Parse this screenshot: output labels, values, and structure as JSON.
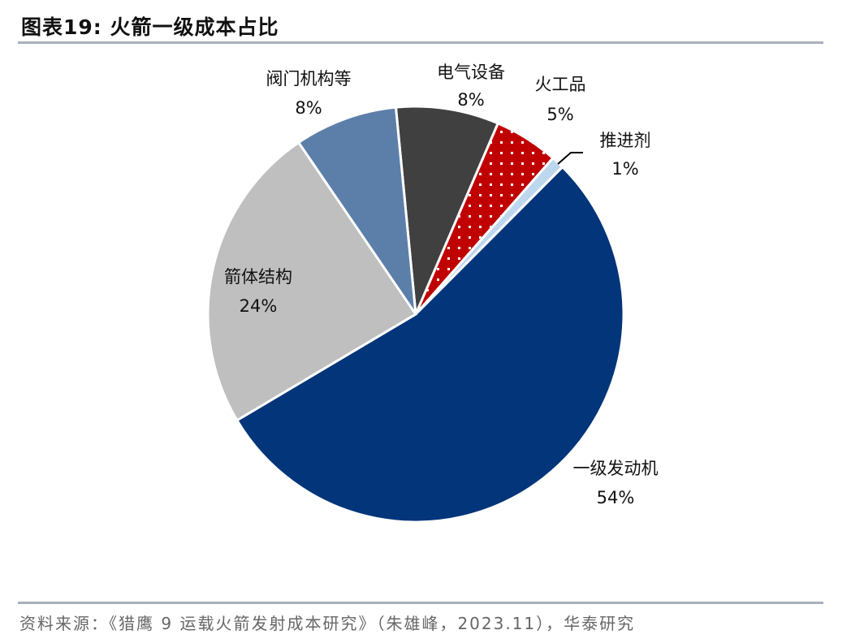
{
  "title": "图表19:  火箭一级成本占比",
  "footer": "资料来源：《猎鹰 9 运载火箭发射成本研究》（朱雄峰，2023.11），华泰研究",
  "chart_data": {
    "type": "pie",
    "title": "",
    "start_angle_deg": -5.5,
    "direction": "clockwise",
    "slices": [
      {
        "label": "电气设备",
        "value": 8,
        "pct_label": "8%",
        "color": "#404040"
      },
      {
        "label": "火工品",
        "value": 5,
        "pct_label": "5%",
        "color": "#C00000",
        "pattern": "white-dots"
      },
      {
        "label": "推进剂",
        "value": 1,
        "pct_label": "1%",
        "color": "#BDD7EE"
      },
      {
        "label": "一级发动机",
        "value": 54,
        "pct_label": "54%",
        "color": "#03357A"
      },
      {
        "label": "箭体结构",
        "value": 24,
        "pct_label": "24%",
        "color": "#BFBFBF"
      },
      {
        "label": "阀门机构等",
        "value": 8,
        "pct_label": "8%",
        "color": "#5C7FAA"
      }
    ]
  }
}
